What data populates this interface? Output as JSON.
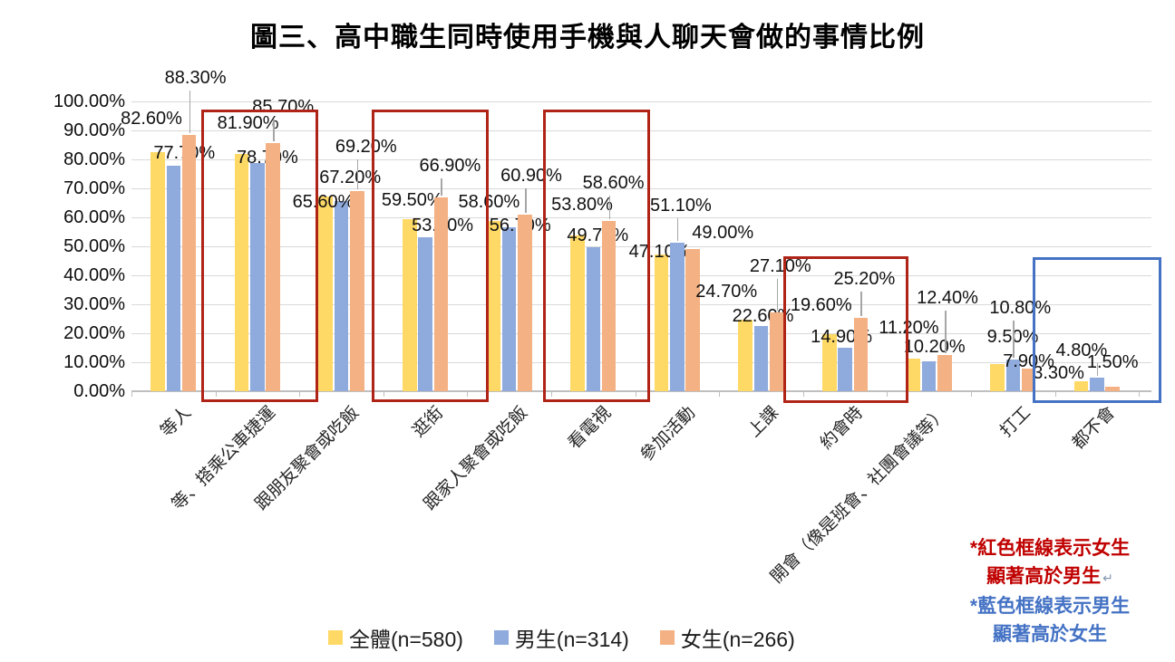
{
  "title": "圖三、高中職生同時使用手機與人聊天會做的事情比例",
  "chart_data": {
    "type": "bar",
    "title": "圖三、高中職生同時使用手機與人聊天會做的事情比例",
    "categories": [
      "等人",
      "等、搭乘公車捷運",
      "跟朋友聚會或吃飯",
      "逛街",
      "跟家人聚會或吃飯",
      "看電視",
      "參加活動",
      "上課",
      "約會時",
      "開會（像是班會、社團會議等）",
      "打工",
      "都不會"
    ],
    "series": [
      {
        "id": "total",
        "name": "全體(n=580)",
        "color": "#FFD966",
        "values": [
          82.6,
          81.9,
          67.2,
          59.5,
          58.6,
          53.8,
          47.1,
          24.7,
          19.6,
          11.2,
          9.5,
          3.3
        ],
        "labels": [
          "82.60%",
          "81.90%",
          "67.20%",
          "59.50%",
          "58.60%",
          "53.80%",
          "47.10%",
          "24.70%",
          "19.60%",
          "11.20%",
          "9.50%",
          "3.30%"
        ]
      },
      {
        "id": "male",
        "name": "男生(n=314)",
        "color": "#8FAADC",
        "values": [
          77.7,
          78.7,
          65.6,
          53.2,
          56.7,
          49.7,
          51.1,
          22.6,
          14.9,
          10.2,
          10.8,
          4.8
        ],
        "labels": [
          "77.70%",
          "78.70%",
          "65.60%",
          "53.20%",
          "56.70%",
          "49.70%",
          "51.10%",
          "22.60%",
          "14.90%",
          "10.20%",
          "10.80%",
          "4.80%"
        ]
      },
      {
        "id": "female",
        "name": "女生(n=266)",
        "color": "#F4B183",
        "values": [
          88.3,
          85.7,
          69.2,
          66.9,
          60.9,
          58.6,
          49.0,
          27.1,
          25.2,
          12.4,
          7.9,
          1.5
        ],
        "labels": [
          "88.30%",
          "85.70%",
          "69.20%",
          "66.90%",
          "60.90%",
          "58.60%",
          "49.00%",
          "27.10%",
          "25.20%",
          "12.40%",
          "7.90%",
          "1.50%"
        ]
      }
    ],
    "ylim": [
      0,
      100
    ],
    "y_tick_labels": [
      "100.00%",
      "90.00%",
      "80.00%",
      "70.00%",
      "60.00%",
      "50.00%",
      "40.00%",
      "30.00%",
      "20.00%",
      "10.00%",
      "0.00%"
    ],
    "grid": true,
    "legend_position": "bottom"
  },
  "highlights": {
    "red": {
      "color": "#B02418",
      "meaning": "女生顯著高於男生",
      "categories": [
        "等、搭乘公車捷運",
        "逛街",
        "看電視",
        "約會時"
      ]
    },
    "blue": {
      "color": "#4472C4",
      "meaning": "男生顯著高於女生",
      "categories": [
        "都不會"
      ]
    }
  },
  "annotations": {
    "red_note": {
      "lines": [
        "*紅色框線表示女生",
        "顯著高於男生"
      ],
      "return_mark": "↵",
      "color": "#C00000"
    },
    "blue_note": {
      "lines": [
        "*藍色框線表示男生",
        "顯著高於女生"
      ],
      "color": "#4472C4"
    }
  }
}
